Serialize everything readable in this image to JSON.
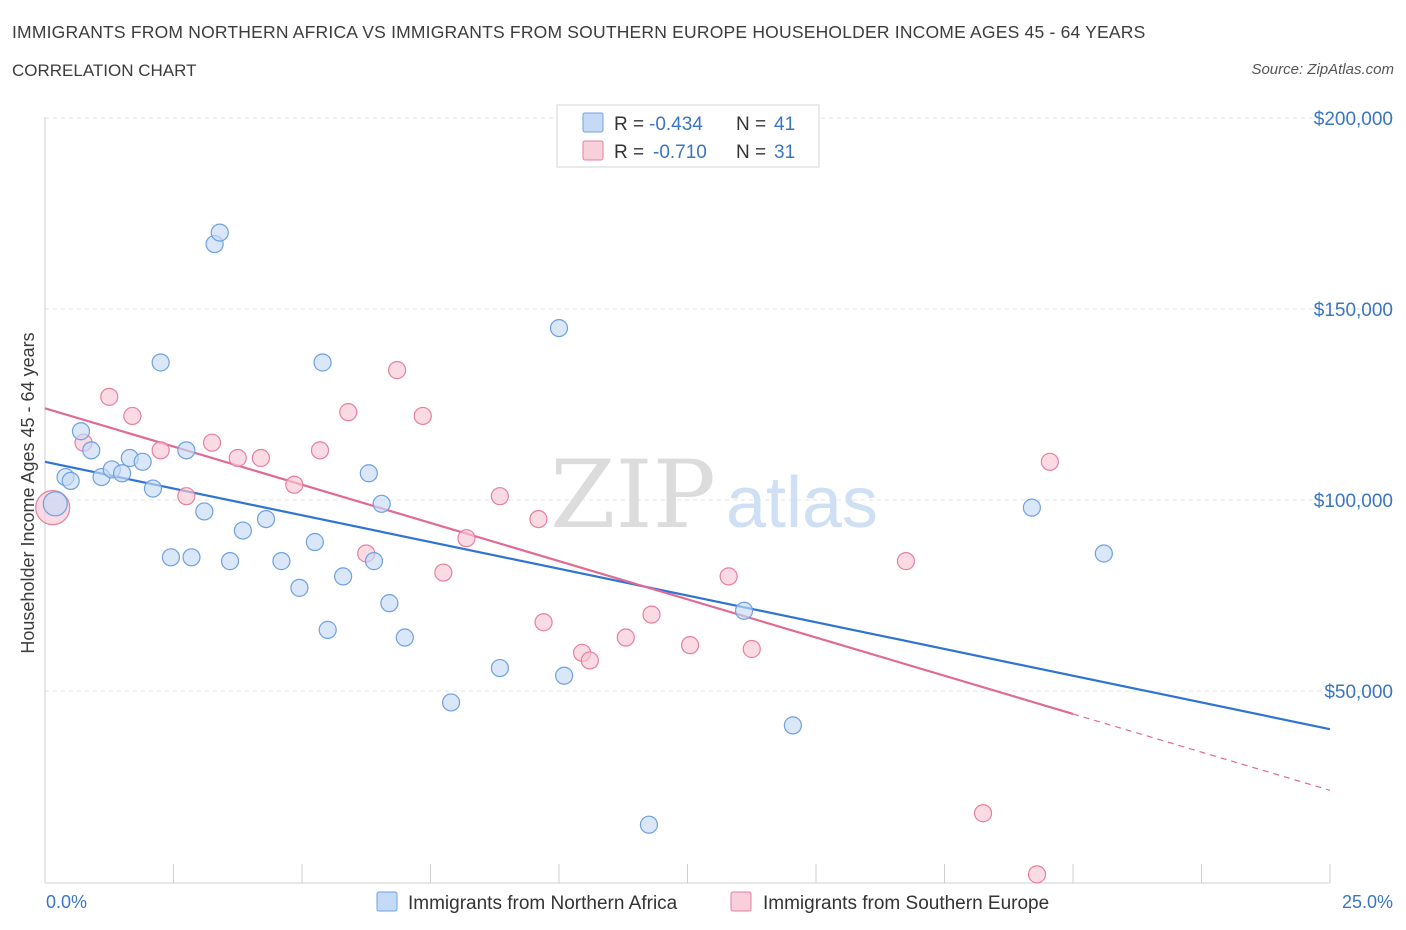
{
  "header": {
    "title": "IMMIGRANTS FROM NORTHERN AFRICA VS IMMIGRANTS FROM SOUTHERN EUROPE HOUSEHOLDER INCOME AGES 45 - 64 YEARS",
    "subtitle": "CORRELATION CHART",
    "source": "Source: ZipAtlas.com"
  },
  "watermark": {
    "zip": "ZIP",
    "atlas": "atlas"
  },
  "legend": {
    "r_label": "R =",
    "n_label": "N =",
    "rows": [
      {
        "r": "-0.434",
        "n": "41",
        "color": "#a9c8f2"
      },
      {
        "r": "-0.710",
        "n": "31",
        "color": "#f6b9cb"
      }
    ]
  },
  "bottom_legend": [
    {
      "label": "Immigrants from Northern Africa",
      "color": "#a9c8f2"
    },
    {
      "label": "Immigrants from Southern Europe",
      "color": "#f6b9cb"
    }
  ],
  "chart_data": {
    "type": "scatter",
    "title": "IMMIGRANTS FROM NORTHERN AFRICA VS IMMIGRANTS FROM SOUTHERN EUROPE HOUSEHOLDER INCOME AGES 45 - 64 YEARS",
    "xlabel": "",
    "ylabel": "Householder Income Ages 45 - 64 years",
    "xlim": [
      0,
      25
    ],
    "ylim": [
      0,
      200000
    ],
    "x_tick_labels": [
      "0.0%",
      "25.0%"
    ],
    "y_ticks": [
      {
        "value": 50000,
        "label": "$50,000"
      },
      {
        "value": 100000,
        "label": "$100,000"
      },
      {
        "value": 150000,
        "label": "$150,000"
      },
      {
        "value": 200000,
        "label": "$200,000"
      }
    ],
    "grid": true,
    "legend_position": "top-center",
    "series": [
      {
        "name": "Immigrants from Northern Africa",
        "color": "#6fa0e0",
        "fill": "#c5daf6",
        "trend": {
          "x": [
            0,
            25
          ],
          "y": [
            110000,
            40000
          ]
        },
        "points": [
          {
            "x": 0.2,
            "y": 99000
          },
          {
            "x": 0.4,
            "y": 106000
          },
          {
            "x": 0.5,
            "y": 105000
          },
          {
            "x": 0.7,
            "y": 118000
          },
          {
            "x": 0.9,
            "y": 113000
          },
          {
            "x": 1.1,
            "y": 106000
          },
          {
            "x": 1.3,
            "y": 108000
          },
          {
            "x": 1.5,
            "y": 107000
          },
          {
            "x": 1.65,
            "y": 111000
          },
          {
            "x": 1.9,
            "y": 110000
          },
          {
            "x": 2.1,
            "y": 103000
          },
          {
            "x": 2.25,
            "y": 136000
          },
          {
            "x": 2.45,
            "y": 85000
          },
          {
            "x": 2.75,
            "y": 113000
          },
          {
            "x": 2.85,
            "y": 85000
          },
          {
            "x": 3.1,
            "y": 97000
          },
          {
            "x": 3.3,
            "y": 167000
          },
          {
            "x": 3.4,
            "y": 170000
          },
          {
            "x": 3.6,
            "y": 84000
          },
          {
            "x": 3.85,
            "y": 92000
          },
          {
            "x": 4.3,
            "y": 95000
          },
          {
            "x": 4.6,
            "y": 84000
          },
          {
            "x": 4.95,
            "y": 77000
          },
          {
            "x": 5.25,
            "y": 89000
          },
          {
            "x": 5.4,
            "y": 136000
          },
          {
            "x": 5.5,
            "y": 66000
          },
          {
            "x": 5.8,
            "y": 80000
          },
          {
            "x": 6.3,
            "y": 107000
          },
          {
            "x": 6.4,
            "y": 84000
          },
          {
            "x": 6.55,
            "y": 99000
          },
          {
            "x": 6.7,
            "y": 73000
          },
          {
            "x": 7.0,
            "y": 64000
          },
          {
            "x": 7.9,
            "y": 47000
          },
          {
            "x": 8.85,
            "y": 56000
          },
          {
            "x": 10.0,
            "y": 145000
          },
          {
            "x": 10.1,
            "y": 54000
          },
          {
            "x": 11.75,
            "y": 15000
          },
          {
            "x": 13.6,
            "y": 71000
          },
          {
            "x": 14.55,
            "y": 41000
          },
          {
            "x": 19.2,
            "y": 98000
          },
          {
            "x": 20.6,
            "y": 86000
          }
        ]
      },
      {
        "name": "Immigrants from Southern Europe",
        "color": "#e87ea1",
        "fill": "#f8c8d6",
        "trend": {
          "x": [
            0,
            20
          ],
          "y": [
            124000,
            44000
          ]
        },
        "trend_extension": {
          "x": [
            20,
            25
          ],
          "y": [
            44000,
            24000
          ]
        },
        "points": [
          {
            "x": 0.15,
            "y": 98000
          },
          {
            "x": 0.75,
            "y": 115000
          },
          {
            "x": 1.25,
            "y": 127000
          },
          {
            "x": 1.7,
            "y": 122000
          },
          {
            "x": 2.25,
            "y": 113000
          },
          {
            "x": 2.75,
            "y": 101000
          },
          {
            "x": 3.25,
            "y": 115000
          },
          {
            "x": 3.75,
            "y": 111000
          },
          {
            "x": 4.2,
            "y": 111000
          },
          {
            "x": 4.85,
            "y": 104000
          },
          {
            "x": 5.35,
            "y": 113000
          },
          {
            "x": 5.9,
            "y": 123000
          },
          {
            "x": 6.25,
            "y": 86000
          },
          {
            "x": 6.85,
            "y": 134000
          },
          {
            "x": 7.35,
            "y": 122000
          },
          {
            "x": 7.75,
            "y": 81000
          },
          {
            "x": 8.2,
            "y": 90000
          },
          {
            "x": 8.85,
            "y": 101000
          },
          {
            "x": 9.6,
            "y": 95000
          },
          {
            "x": 9.7,
            "y": 68000
          },
          {
            "x": 10.45,
            "y": 60000
          },
          {
            "x": 10.6,
            "y": 58000
          },
          {
            "x": 11.3,
            "y": 64000
          },
          {
            "x": 11.8,
            "y": 70000
          },
          {
            "x": 12.55,
            "y": 62000
          },
          {
            "x": 13.3,
            "y": 80000
          },
          {
            "x": 13.75,
            "y": 61000
          },
          {
            "x": 16.75,
            "y": 84000
          },
          {
            "x": 18.25,
            "y": 18000
          },
          {
            "x": 19.3,
            "y": 2000
          },
          {
            "x": 19.55,
            "y": 110000
          }
        ]
      }
    ]
  }
}
